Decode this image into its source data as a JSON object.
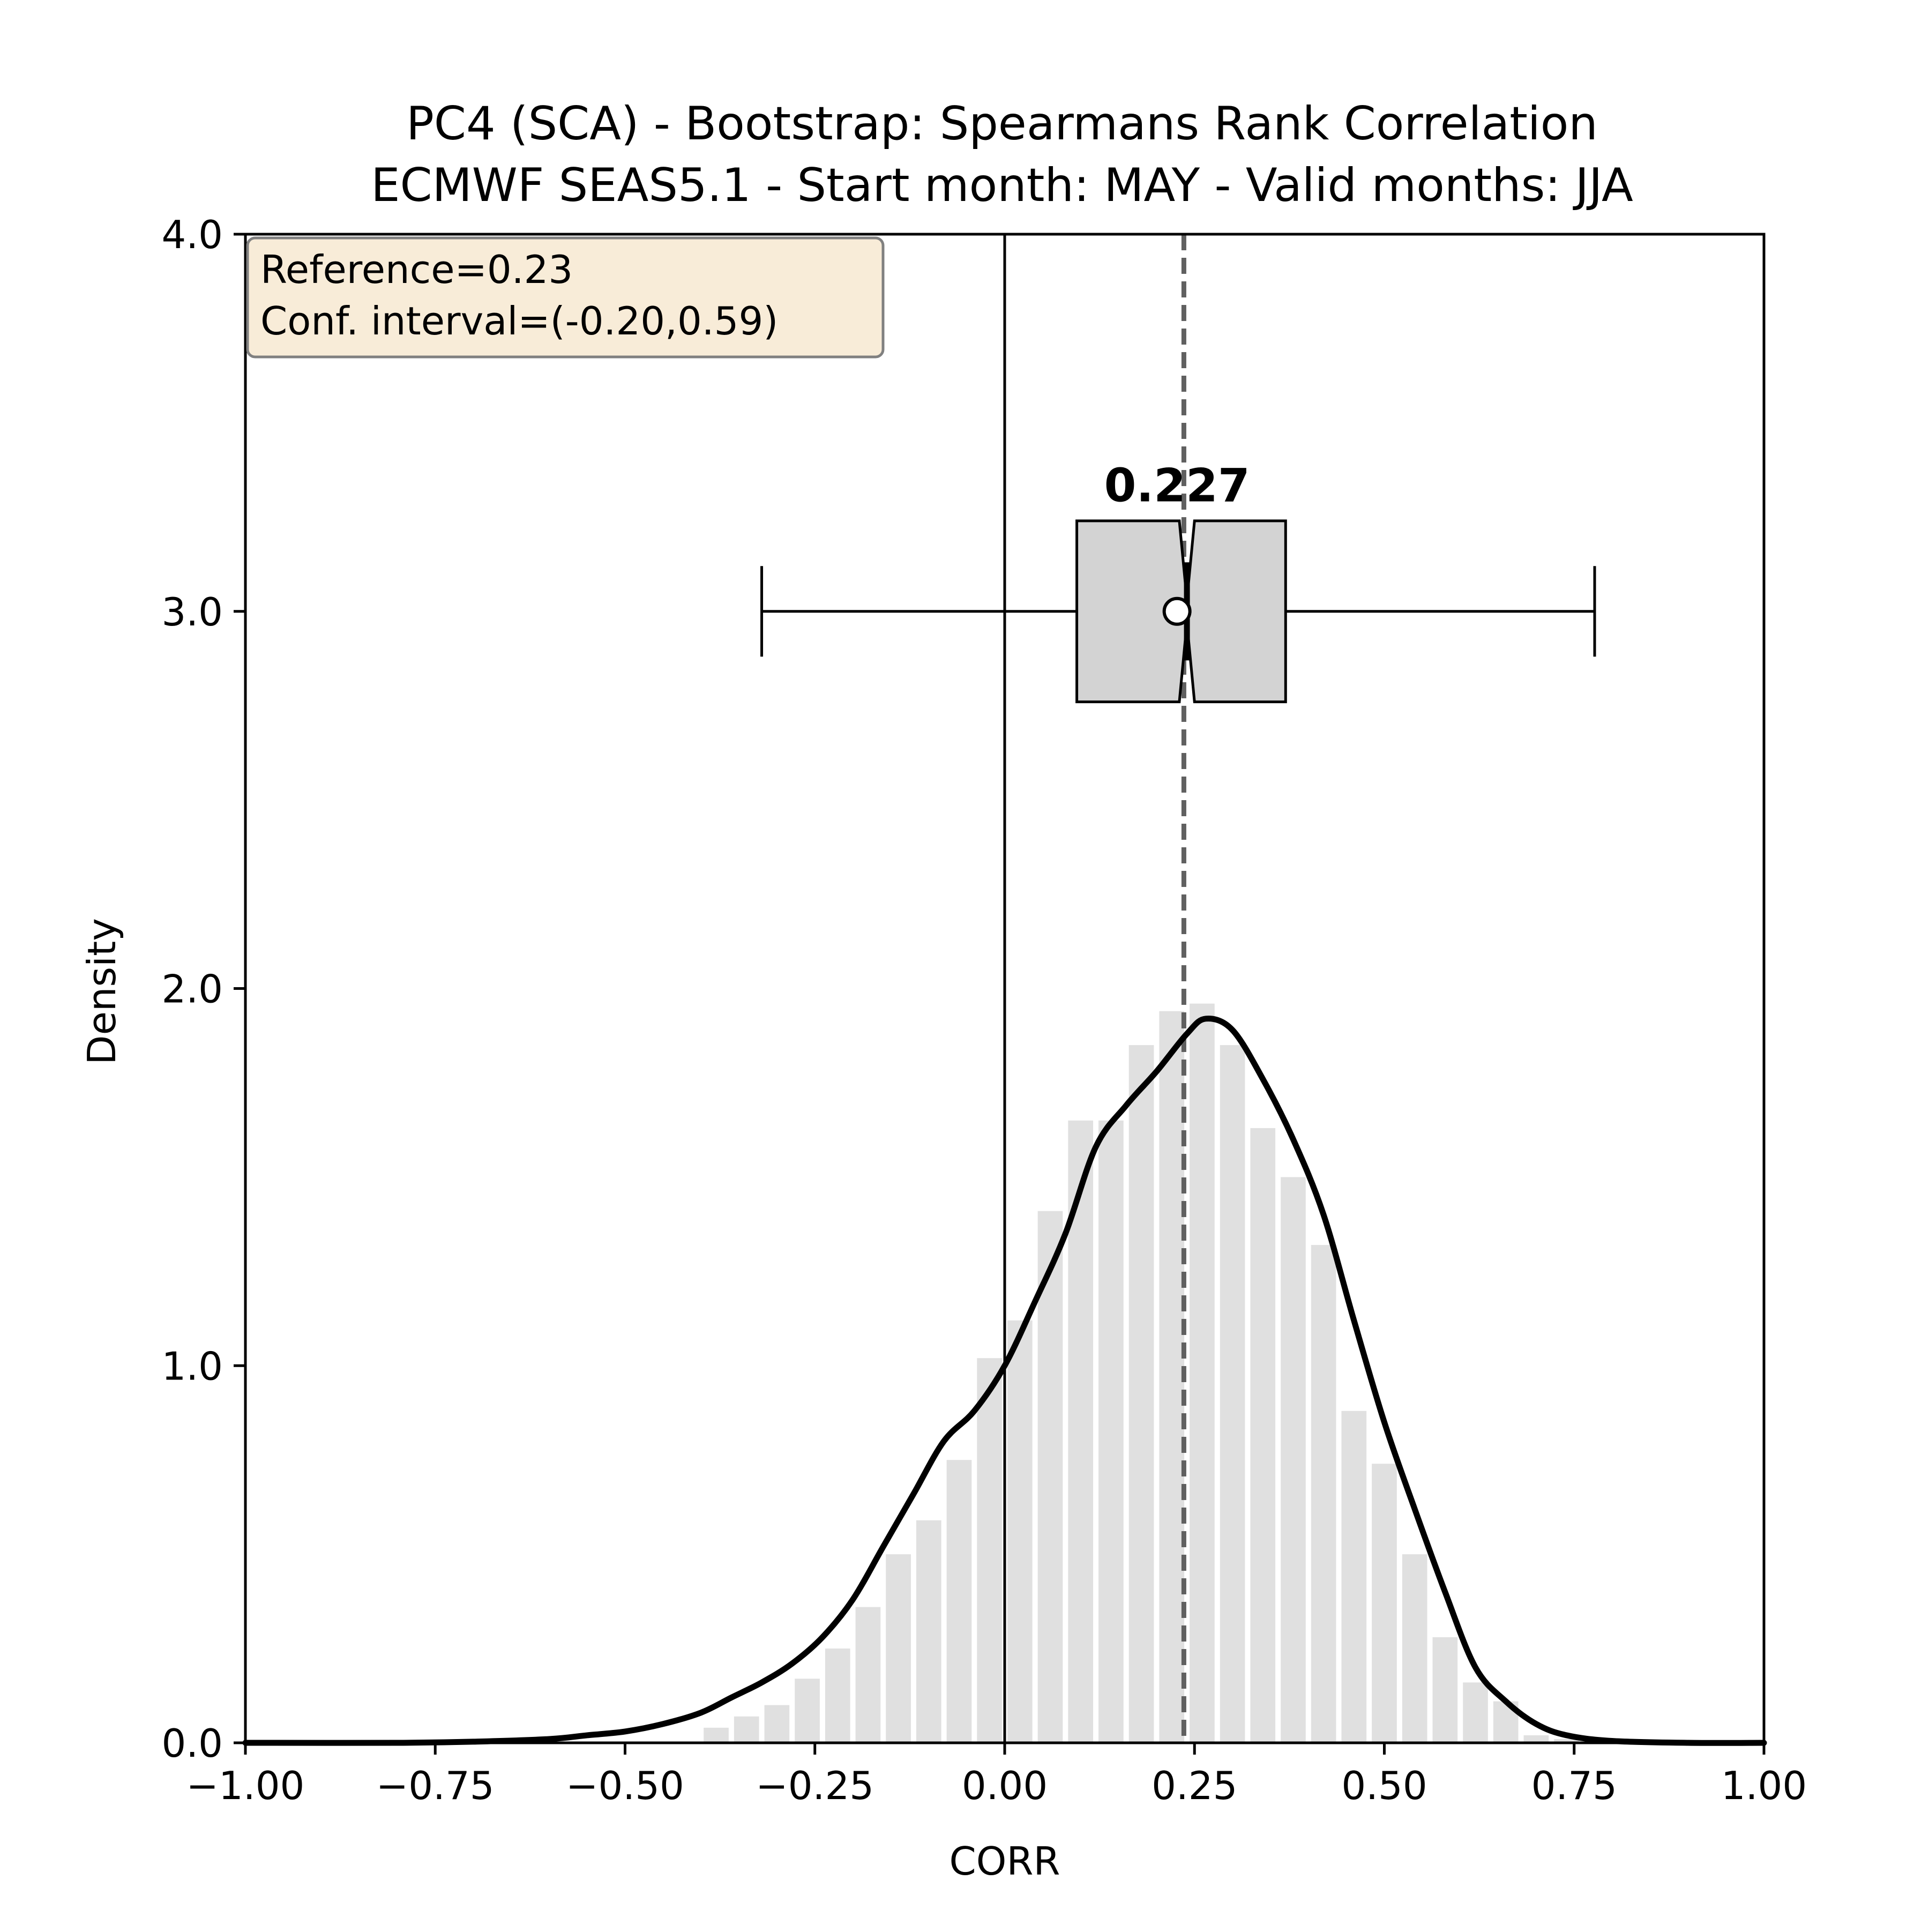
{
  "chart_data": {
    "type": "histogram+kde+boxplot",
    "title": "PC4 (SCA) - Bootstrap: Spearmans Rank Correlation",
    "subtitle": "ECMWF SEAS5.1 - Start month: MAY - Valid months: JJA",
    "xlabel": "CORR",
    "ylabel": "Density",
    "xlim": [
      -1.0,
      1.0
    ],
    "ylim": [
      0.0,
      4.0
    ],
    "xticks": [
      -1.0,
      -0.75,
      -0.5,
      -0.25,
      0.0,
      0.25,
      0.5,
      0.75,
      1.0
    ],
    "xtick_labels": [
      "−1.00",
      "−0.75",
      "−0.50",
      "−0.25",
      "0.00",
      "0.25",
      "0.50",
      "0.75",
      "1.00"
    ],
    "yticks": [
      0.0,
      1.0,
      2.0,
      3.0,
      4.0
    ],
    "ytick_labels": [
      "0.0",
      "1.0",
      "2.0",
      "3.0",
      "4.0"
    ],
    "grid": false,
    "histogram": {
      "bin_edges": [
        -0.4,
        -0.36,
        -0.32,
        -0.28,
        -0.24,
        -0.2,
        -0.16,
        -0.12,
        -0.08,
        -0.04,
        0.0,
        0.04,
        0.08,
        0.12,
        0.16,
        0.2,
        0.24,
        0.28,
        0.32,
        0.36,
        0.4,
        0.44,
        0.48,
        0.52,
        0.56,
        0.6,
        0.64,
        0.68,
        0.72,
        0.76
      ],
      "densities": [
        0.04,
        0.07,
        0.1,
        0.17,
        0.25,
        0.36,
        0.5,
        0.59,
        0.75,
        1.02,
        1.12,
        1.41,
        1.65,
        1.65,
        1.85,
        1.94,
        1.96,
        1.85,
        1.63,
        1.5,
        1.32,
        0.88,
        0.74,
        0.5,
        0.28,
        0.16,
        0.11,
        0.02,
        0.01
      ],
      "color": "#e0e0e0"
    },
    "kde": {
      "x": [
        -1.0,
        -0.8,
        -0.7,
        -0.6,
        -0.55,
        -0.5,
        -0.45,
        -0.4,
        -0.36,
        -0.32,
        -0.28,
        -0.24,
        -0.2,
        -0.16,
        -0.12,
        -0.08,
        -0.04,
        0.0,
        0.04,
        0.08,
        0.12,
        0.16,
        0.2,
        0.24,
        0.265,
        0.3,
        0.34,
        0.38,
        0.42,
        0.46,
        0.5,
        0.54,
        0.58,
        0.62,
        0.66,
        0.7,
        0.74,
        0.8,
        0.9,
        1.0
      ],
      "y": [
        0.0,
        0.0,
        0.003,
        0.01,
        0.02,
        0.03,
        0.05,
        0.08,
        0.12,
        0.16,
        0.21,
        0.28,
        0.38,
        0.52,
        0.66,
        0.8,
        0.88,
        1.0,
        1.17,
        1.35,
        1.58,
        1.69,
        1.78,
        1.88,
        1.92,
        1.89,
        1.76,
        1.6,
        1.4,
        1.12,
        0.85,
        0.62,
        0.4,
        0.2,
        0.11,
        0.05,
        0.02,
        0.005,
        0.0,
        0.0
      ],
      "color": "#000000"
    },
    "reference_line": {
      "x": 0.0
    },
    "dashed_line": {
      "x": 0.236,
      "color": "#606060"
    },
    "boxplot": {
      "y_center": 3.0,
      "whisker_low": -0.32,
      "q1": 0.095,
      "median": 0.24,
      "q3": 0.37,
      "whisker_high": 0.777,
      "mean": 0.227,
      "notch_low": 0.23,
      "notch_high": 0.25,
      "box_height": 0.48,
      "cap_height": 0.24,
      "fill": "#d3d3d3",
      "label": "0.227",
      "label_y": 3.28
    },
    "annotation": {
      "lines": [
        "Reference=0.23",
        "Conf. interval=(-0.20,0.59)"
      ],
      "location": "top-left",
      "fill": "#f8ecd8",
      "edge": "#808080"
    }
  }
}
